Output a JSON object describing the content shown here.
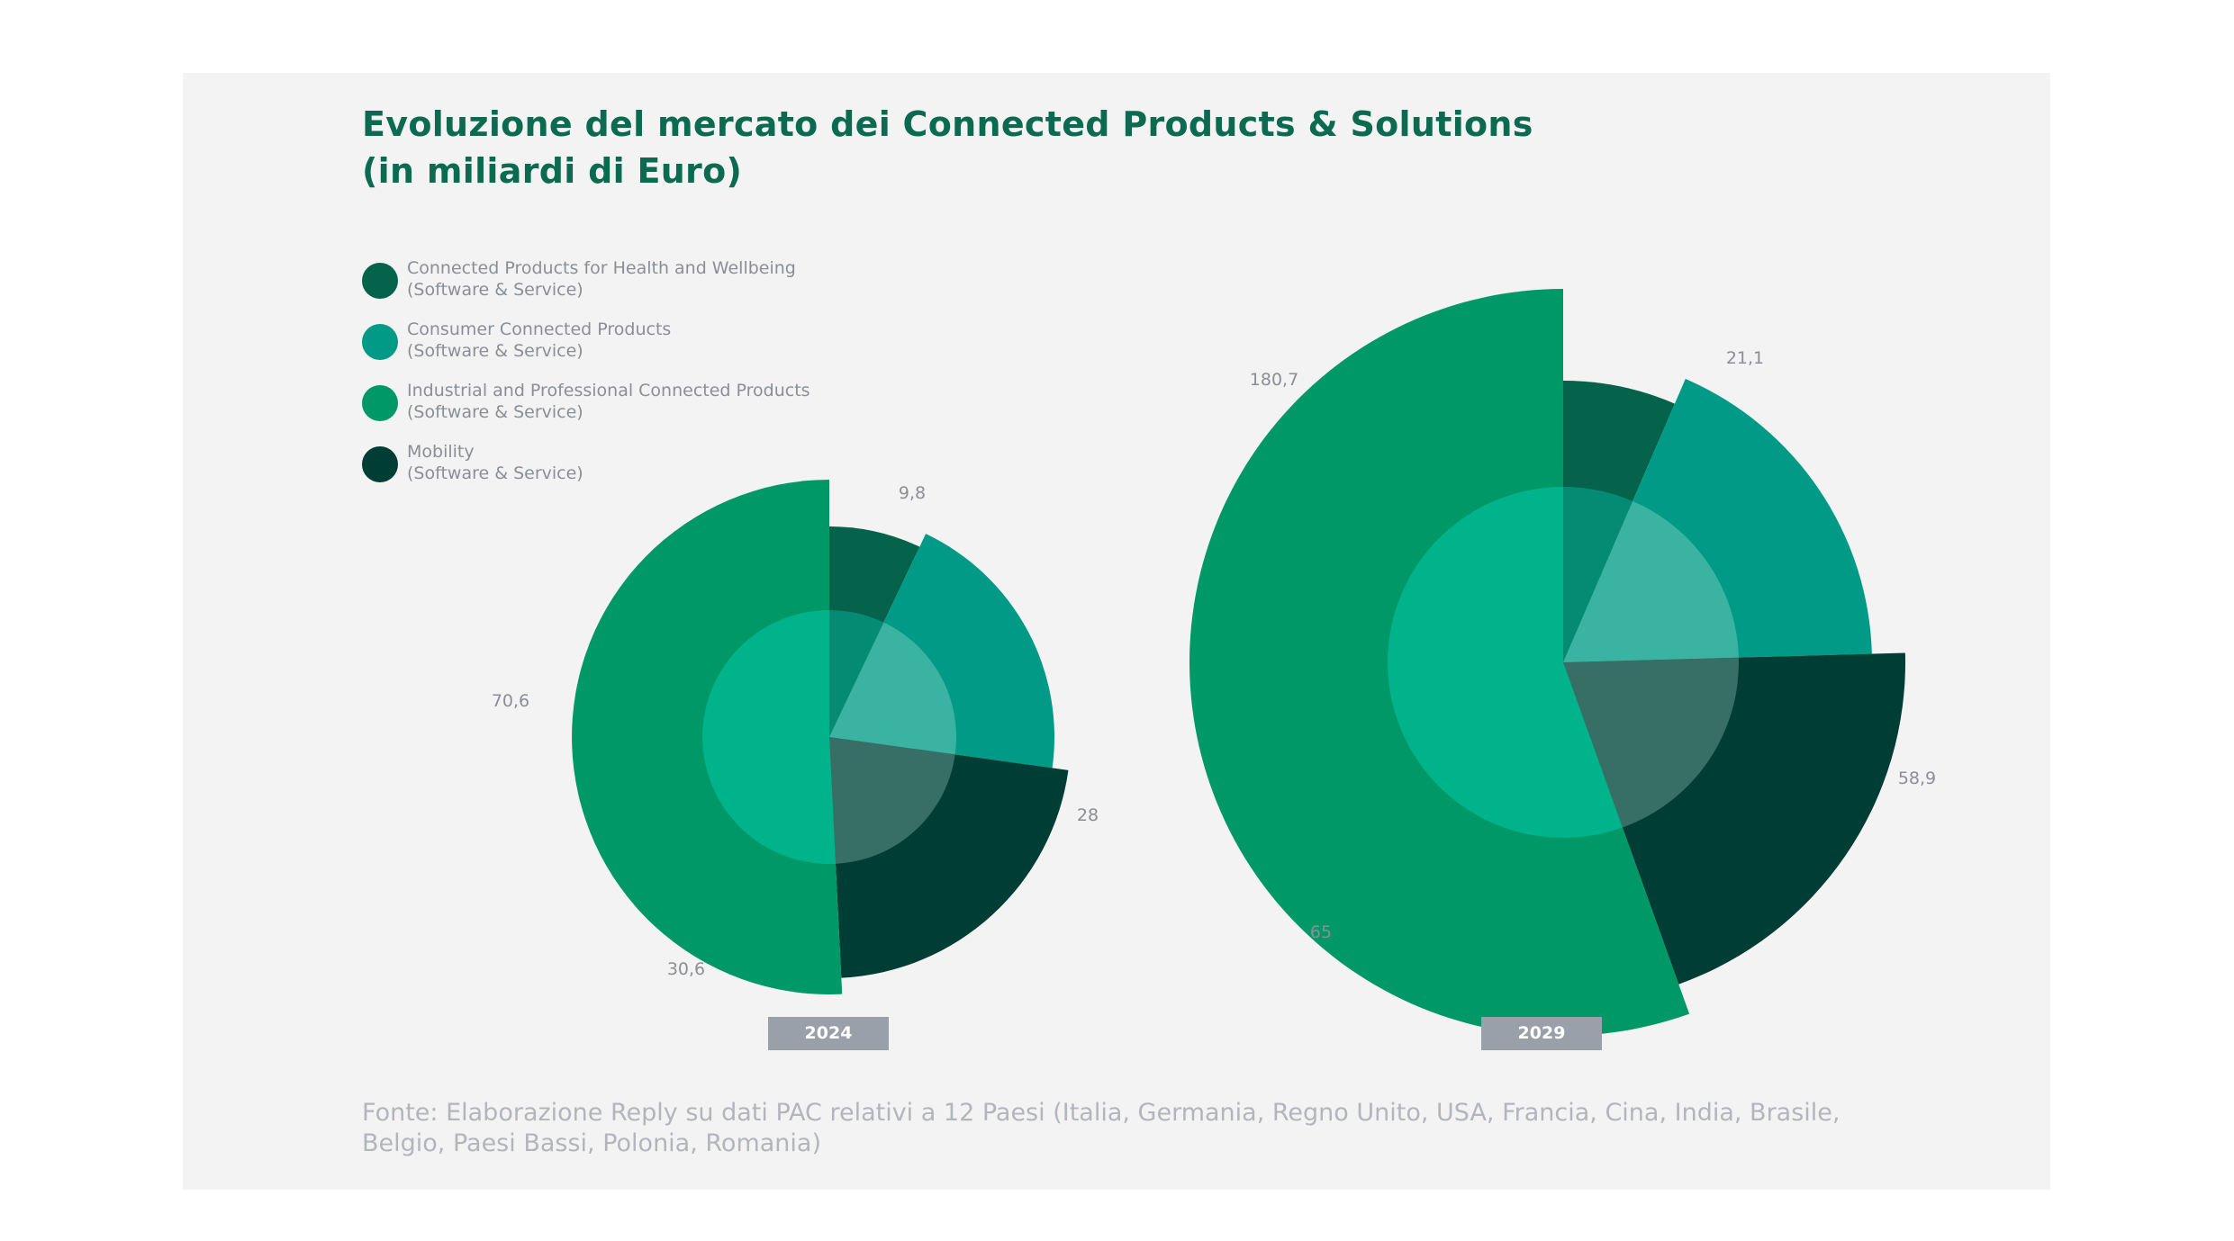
{
  "title": [
    "Evoluzione del mercato dei Connected Products & Solutions",
    "(in miliardi di Euro)"
  ],
  "legend": [
    {
      "line1": "Connected Products for Health and Wellbeing",
      "line2": "(Software & Service)",
      "color": "#04634a"
    },
    {
      "line1": "Consumer Connected Products",
      "line2": "(Software & Service)",
      "color": "#009a87"
    },
    {
      "line1": "Industrial and Professional Connected Products",
      "line2": "(Software & Service)",
      "color": "#009866"
    },
    {
      "line1": "Mobility",
      "line2": "(Software & Service)",
      "color": "#003d34"
    }
  ],
  "chart_data": [
    {
      "type": "pie",
      "year_label": "2024",
      "categories": [
        "Connected Products for Health and Wellbeing",
        "Consumer Connected Products",
        "Mobility",
        "Industrial and Professional Connected Products"
      ],
      "values": [
        9.8,
        28,
        30.6,
        70.6
      ],
      "value_labels": [
        "9,8",
        "28",
        "30,6",
        "70,6"
      ]
    },
    {
      "type": "pie",
      "year_label": "2029",
      "categories": [
        "Connected Products for Health and Wellbeing",
        "Consumer Connected Products",
        "Mobility",
        "Industrial and Professional Connected Products"
      ],
      "values": [
        21.1,
        58.9,
        65,
        180.7
      ],
      "value_labels": [
        "21,1",
        "58,9",
        "65",
        "180,7"
      ]
    }
  ],
  "colors": {
    "title": "#0b6a4f",
    "panel": "#f3f3f3",
    "inner_overlay": [
      "#058a74",
      "#3bb3a3",
      "#376f66",
      "#00b38a"
    ],
    "badge": "#9aa0a9"
  },
  "source": [
    "Fonte: Elaborazione Reply su dati PAC relativi a 12 Paesi (Italia, Germania, Regno Unito, USA, Francia, Cina, India, Brasile,",
    "Belgio, Paesi Bassi, Polonia, Romania)"
  ]
}
